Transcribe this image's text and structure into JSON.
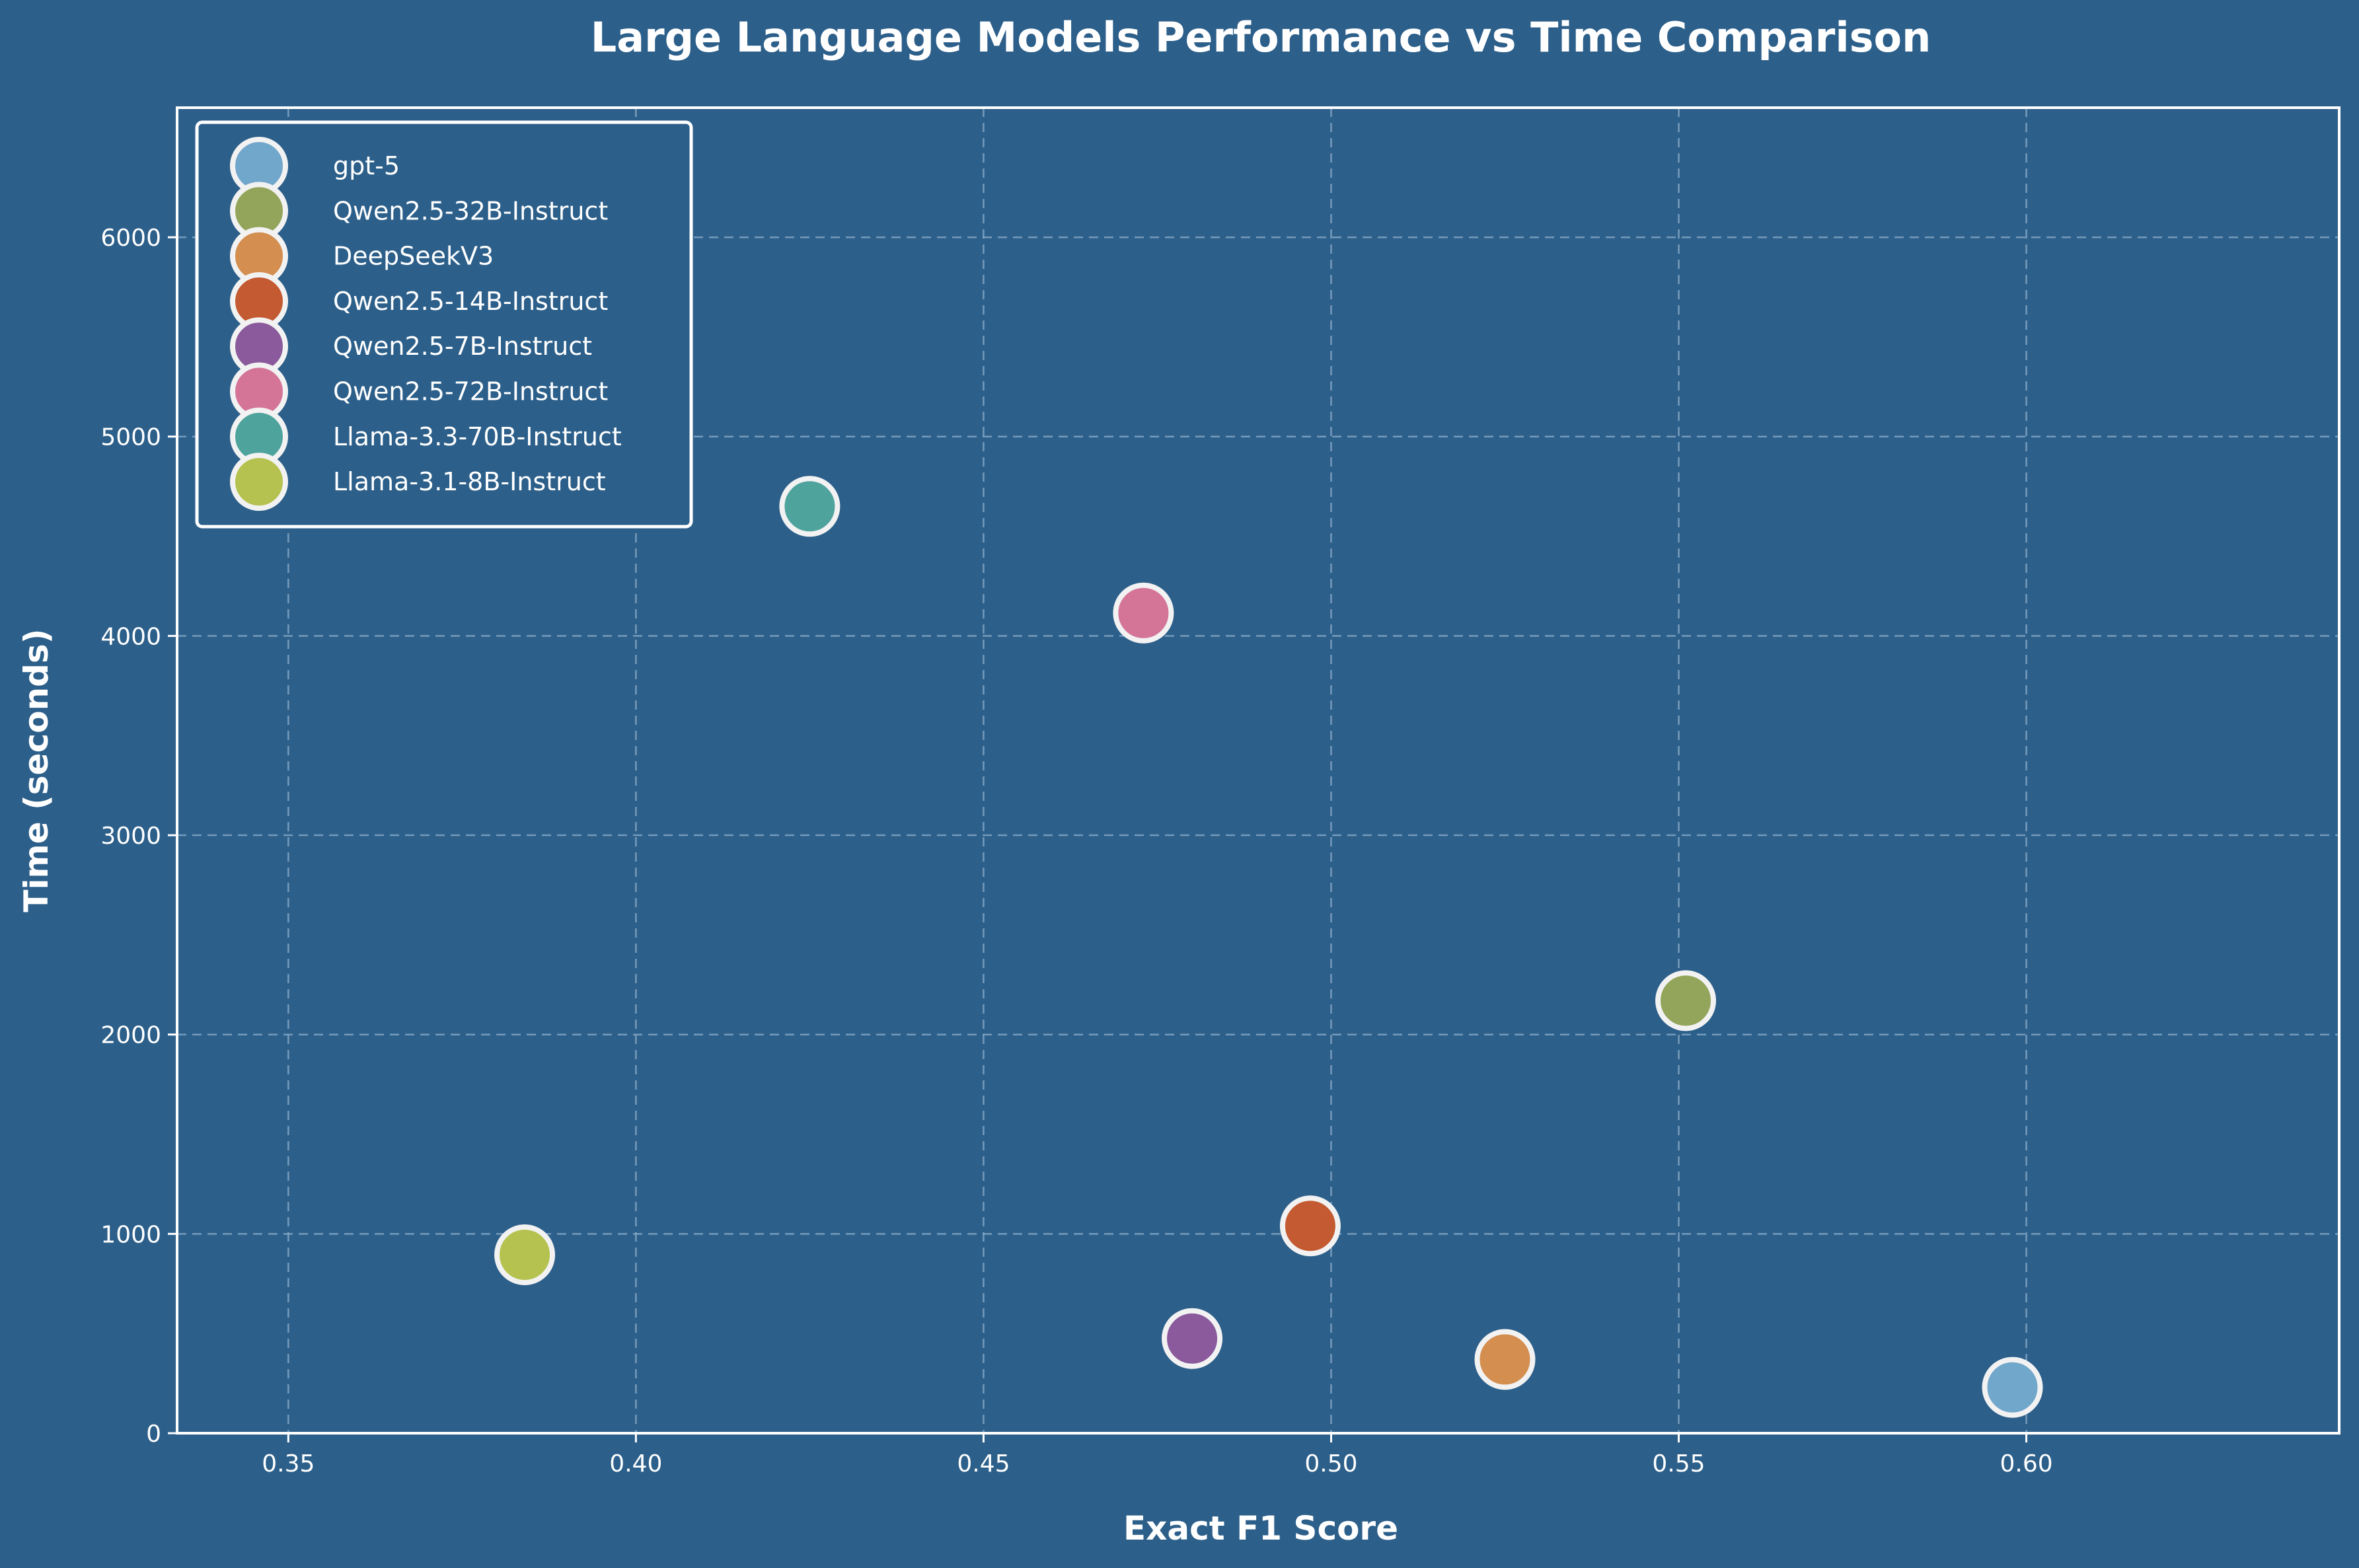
{
  "chart_data": {
    "type": "scatter",
    "title": "Large Language Models Performance vs Time Comparison",
    "xlabel": "Exact F1 Score",
    "ylabel": "Time (seconds)",
    "xlim": [
      0.334,
      0.645
    ],
    "ylim": [
      0,
      6650
    ],
    "xticks": [
      0.35,
      0.4,
      0.45,
      0.5,
      0.55,
      0.6
    ],
    "xtick_labels": [
      "0.35",
      "0.40",
      "0.45",
      "0.50",
      "0.55",
      "0.60"
    ],
    "yticks": [
      0,
      1000,
      2000,
      3000,
      4000,
      5000,
      6000
    ],
    "ytick_labels": [
      "0",
      "1000",
      "2000",
      "3000",
      "4000",
      "5000",
      "6000"
    ],
    "grid": true,
    "legend_position": "top-left",
    "colors": {
      "background": "#2c5f8a",
      "text": "#ffffff",
      "marker_edge": "#f2f2f2"
    },
    "series": [
      {
        "name": "gpt-5",
        "x": 0.598,
        "y": 230,
        "color": "#72a7cc"
      },
      {
        "name": "Qwen2.5-32B-Instruct",
        "x": 0.551,
        "y": 2170,
        "color": "#92a55a"
      },
      {
        "name": "DeepSeekV3",
        "x": 0.525,
        "y": 370,
        "color": "#d38e50"
      },
      {
        "name": "Qwen2.5-14B-Instruct",
        "x": 0.497,
        "y": 1040,
        "color": "#c45a32"
      },
      {
        "name": "Qwen2.5-7B-Instruct",
        "x": 0.48,
        "y": 475,
        "color": "#8a5a9c"
      },
      {
        "name": "Qwen2.5-72B-Instruct",
        "x": 0.473,
        "y": 4115,
        "color": "#d47598"
      },
      {
        "name": "Llama-3.3-70B-Instruct",
        "x": 0.425,
        "y": 4650,
        "color": "#4ea39d"
      },
      {
        "name": "Llama-3.1-8B-Instruct",
        "x": 0.384,
        "y": 895,
        "color": "#b5c24f"
      }
    ]
  }
}
